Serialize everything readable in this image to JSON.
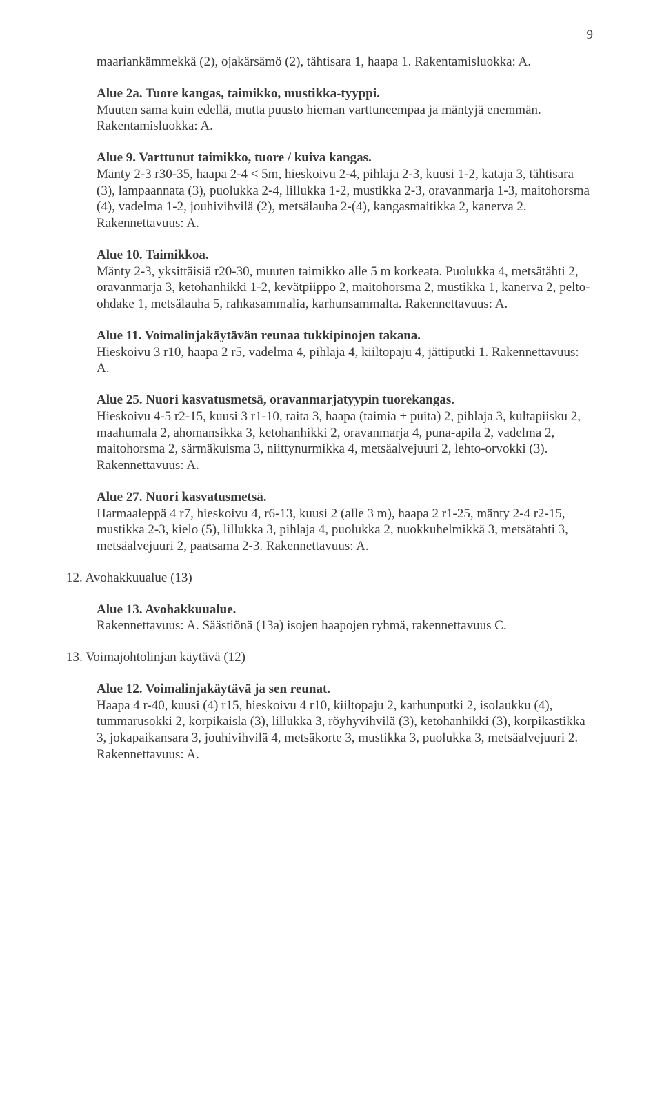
{
  "page_number": "9",
  "text_color": "#3a3a3a",
  "bg_color": "#ffffff",
  "font_family": "Times New Roman",
  "font_size_pt": 14,
  "p_intro": "maariankämmekkä (2), ojakärsämö (2), tähtisara 1, haapa 1. Rakentamisluokka: A.",
  "alue2a_title": "Alue 2a. Tuore kangas, taimikko, mustikka-tyyppi.",
  "alue2a_body": "Muuten sama kuin edellä, mutta puusto hieman varttuneempaa ja mäntyjä enemmän. Rakentamisluokka: A.",
  "alue9_title": "Alue 9. Varttunut taimikko, tuore / kuiva kangas.",
  "alue9_body": "Mänty 2-3 r30-35, haapa 2-4 < 5m, hieskoivu 2-4, pihlaja 2-3, kuusi 1-2, kataja 3, tähtisara (3), lampaannata (3), puolukka 2-4, lillukka 1-2, mustikka 2-3, oravanmarja 1-3, maitohorsma (4), vadelma 1-2, jouhivihvilä (2), metsälauha 2-(4), kangasmaitikka 2, kanerva 2. Rakennettavuus: A.",
  "alue10_title": "Alue 10. Taimikkoa.",
  "alue10_body": "Mänty 2-3, yksittäisiä r20-30, muuten taimikko alle 5 m korkeata. Puolukka 4, metsätähti 2, oravanmarja 3, ketohanhikki 1-2, kevätpiippo 2, maitohorsma 2, mustikka 1, kanerva 2, pelto-ohdake 1, metsälauha 5, rahkasammalia, karhunsammalta. Rakennettavuus: A.",
  "alue11_title": "Alue 11. Voimalinjakäytävän reunaa tukkipinojen takana.",
  "alue11_body": "Hieskoivu 3 r10, haapa 2 r5, vadelma 4, pihlaja 4, kiiltopaju 4, jättiputki 1. Rakennettavuus: A.",
  "alue25_title": "Alue 25. Nuori kasvatusmetsä, oravanmarjatyypin tuorekangas.",
  "alue25_body": "Hieskoivu 4-5 r2-15, kuusi 3 r1-10, raita 3, haapa (taimia + puita) 2, pihlaja 3, kultapiisku 2, maahumala 2, ahomansikka 3, ketohanhikki 2, oravanmarja 4, puna-apila 2, vadelma 2, maitohorsma 2, särmäkuisma 3, niittynurmikka 4, metsäalvejuuri 2, lehto-orvokki (3). Rakennettavuus: A.",
  "alue27_title": "Alue 27. Nuori kasvatusmetsä.",
  "alue27_body": "Harmaaleppä 4 r7, hieskoivu 4, r6-13, kuusi 2 (alle 3 m), haapa 2 r1-25,  mänty 2-4 r2-15, mustikka 2-3, kielo (5), lillukka 3, pihlaja 4, puolukka 2, nuokkuhelmikkä 3, metsätahti 3, metsäalvejuuri 2, paatsama 2-3. Rakennettavuus: A.",
  "sec12": "12. Avohakkuualue (13)",
  "alue13_title": "Alue 13. Avohakkuualue.",
  "alue13_body": "Rakennettavuus: A. Säästiönä (13a) isojen haapojen ryhmä, rakennettavuus C.",
  "sec13": "13. Voimajohtolinjan käytävä (12)",
  "alue12_title": "Alue 12. Voimalinjakäytävä ja sen reunat.",
  "alue12_body": "Haapa 4 r-40, kuusi (4) r15, hieskoivu 4 r10, kiiltopaju 2, karhunputki 2, isolaukku (4), tummarusokki 2, korpikaisla (3), lillukka 3, röyhyvihvilä (3), ketohanhikki (3), korpikastikka 3, jokapaikansara 3, jouhivihvilä 4, metsäkorte 3, mustikka 3, puolukka 3, metsäalvejuuri 2. Rakennettavuus: A."
}
